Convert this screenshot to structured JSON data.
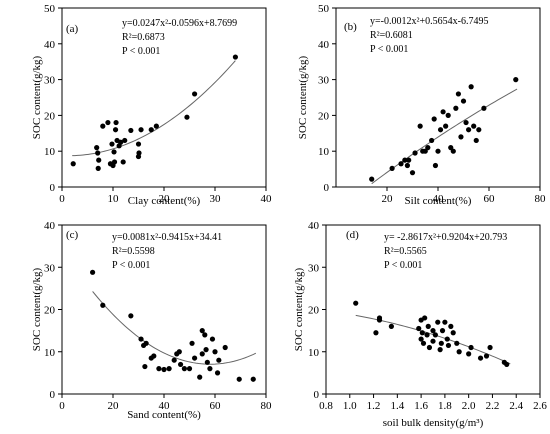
{
  "chart_data": [
    {
      "type": "scatter",
      "panel_label": "(a)",
      "equation": "y=0.0247x²-0.0596x+8.7699",
      "r2": "R²=0.6873",
      "p_value": "P  < 0.001",
      "xlabel": "Clay content(%)",
      "ylabel": "SOC content(g/kg)",
      "xlim": [
        0,
        40
      ],
      "ylim": [
        0,
        50
      ],
      "xticks": [
        0,
        10,
        20,
        30,
        40
      ],
      "xtick_labels": [
        "0",
        "10",
        "20",
        "30",
        "40"
      ],
      "yticks": [
        0,
        10,
        20,
        30,
        40,
        50
      ],
      "ytick_labels": [
        "0",
        "10",
        "20",
        "30",
        "40",
        "50"
      ],
      "fit": {
        "a": 0.0247,
        "b": -0.0596,
        "c": 8.7699,
        "x_range": [
          2,
          34
        ]
      },
      "points": [
        [
          2.2,
          6.5
        ],
        [
          6.8,
          11
        ],
        [
          7,
          9.5
        ],
        [
          7.1,
          5.2
        ],
        [
          7.2,
          7.5
        ],
        [
          8,
          17
        ],
        [
          9,
          18
        ],
        [
          9.5,
          6.5
        ],
        [
          9.8,
          12
        ],
        [
          10,
          6
        ],
        [
          10.2,
          9.8
        ],
        [
          10.3,
          7
        ],
        [
          10.5,
          16
        ],
        [
          10.6,
          18
        ],
        [
          10.8,
          13
        ],
        [
          11.2,
          11.5
        ],
        [
          11.5,
          12.5
        ],
        [
          12,
          7
        ],
        [
          12.3,
          13
        ],
        [
          13.5,
          15.8
        ],
        [
          15,
          12
        ],
        [
          15,
          8.5
        ],
        [
          15.1,
          9.5
        ],
        [
          15.5,
          16
        ],
        [
          17.5,
          16
        ],
        [
          18.5,
          17
        ],
        [
          24.5,
          19.5
        ],
        [
          26,
          26
        ],
        [
          34,
          36.3
        ]
      ]
    },
    {
      "type": "scatter",
      "panel_label": "(b)",
      "equation": "y=-0.0012x²+0.5654x-6.7495",
      "r2": "R²=0.6081",
      "p_value": "P  < 0.001",
      "xlabel": "Silt content(%)",
      "ylabel": "SOC content(g/kg)",
      "xlim": [
        0,
        80
      ],
      "ylim": [
        0,
        50
      ],
      "xticks": [
        20,
        40,
        60,
        80
      ],
      "xtick_labels": [
        "20",
        "40",
        "60",
        "80"
      ],
      "yticks": [
        0,
        10,
        20,
        30,
        40,
        50
      ],
      "ytick_labels": [
        "0",
        "10",
        "20",
        "30",
        "40",
        "50"
      ],
      "fit": {
        "a": -0.0012,
        "b": 0.5654,
        "c": -6.7495,
        "x_range": [
          14,
          71
        ]
      },
      "points": [
        [
          14,
          2.2
        ],
        [
          22,
          5.2
        ],
        [
          25.5,
          6.5
        ],
        [
          27,
          7.5
        ],
        [
          28,
          6
        ],
        [
          28.5,
          7.5
        ],
        [
          30,
          4
        ],
        [
          31,
          9.5
        ],
        [
          33,
          17
        ],
        [
          34,
          10
        ],
        [
          35,
          10
        ],
        [
          36,
          11
        ],
        [
          37.5,
          13
        ],
        [
          38.5,
          19
        ],
        [
          39,
          6
        ],
        [
          40,
          10
        ],
        [
          41,
          16
        ],
        [
          42,
          21
        ],
        [
          43,
          17
        ],
        [
          44,
          20
        ],
        [
          45,
          11
        ],
        [
          46,
          10
        ],
        [
          47,
          22
        ],
        [
          48,
          26
        ],
        [
          49,
          14
        ],
        [
          50,
          24
        ],
        [
          51,
          18
        ],
        [
          52,
          16
        ],
        [
          53,
          28
        ],
        [
          54,
          17
        ],
        [
          55,
          13
        ],
        [
          56,
          16
        ],
        [
          58,
          22
        ],
        [
          70.5,
          30
        ]
      ]
    },
    {
      "type": "scatter",
      "panel_label": "(c)",
      "equation": "y=0.0081x²-0.9415x+34.41",
      "r2": "R²=0.5598",
      "p_value": "P  < 0.001",
      "xlabel": "Sand content(%)",
      "ylabel": "SOC content(g/kg)",
      "xlim": [
        0,
        80
      ],
      "ylim": [
        0,
        40
      ],
      "xticks": [
        0,
        20,
        40,
        60,
        80
      ],
      "xtick_labels": [
        "0",
        "20",
        "40",
        "60",
        "80"
      ],
      "yticks": [
        0,
        10,
        20,
        30,
        40
      ],
      "ytick_labels": [
        "0",
        "10",
        "20",
        "30",
        "40"
      ],
      "fit": {
        "a": 0.0081,
        "b": -0.9415,
        "c": 34.41,
        "x_range": [
          12,
          76
        ]
      },
      "points": [
        [
          12,
          28.8
        ],
        [
          16,
          21
        ],
        [
          27,
          18.5
        ],
        [
          31,
          13
        ],
        [
          32,
          11.5
        ],
        [
          32.5,
          6.5
        ],
        [
          33,
          12
        ],
        [
          35,
          8.5
        ],
        [
          36,
          9
        ],
        [
          38,
          6
        ],
        [
          40,
          5.8
        ],
        [
          42,
          6
        ],
        [
          44,
          8
        ],
        [
          45,
          9.5
        ],
        [
          46,
          10
        ],
        [
          46.5,
          7
        ],
        [
          48,
          6
        ],
        [
          50,
          6
        ],
        [
          51,
          12
        ],
        [
          52,
          8.5
        ],
        [
          54,
          4
        ],
        [
          55,
          9.5
        ],
        [
          55,
          15
        ],
        [
          56,
          14
        ],
        [
          56.5,
          10.5
        ],
        [
          57,
          7.5
        ],
        [
          58,
          6
        ],
        [
          59,
          13
        ],
        [
          60,
          10
        ],
        [
          61,
          5
        ],
        [
          61.5,
          8
        ],
        [
          64,
          11
        ],
        [
          69.5,
          3.5
        ],
        [
          75,
          3.5
        ]
      ]
    },
    {
      "type": "scatter",
      "panel_label": "(d)",
      "equation": "y= -2.8617x²+0.9204x+20.793",
      "r2": "R²=0.5565",
      "p_value": "P  < 0.001",
      "xlabel": "soil bulk density(g/m³)",
      "ylabel": "SOC content(g/kg)",
      "xlim": [
        0.8,
        2.6
      ],
      "ylim": [
        0,
        40
      ],
      "xticks": [
        0.8,
        1.0,
        1.2,
        1.4,
        1.6,
        1.8,
        2.0,
        2.2,
        2.4,
        2.6
      ],
      "xtick_labels": [
        "0.8",
        "1.0",
        "1.2",
        "1.4",
        "1.6",
        "1.8",
        "2.0",
        "2.2",
        "2.4",
        "2.6"
      ],
      "yticks": [
        0,
        10,
        20,
        30,
        40
      ],
      "ytick_labels": [
        "0",
        "10",
        "20",
        "30",
        "40"
      ],
      "fit": {
        "a": -2.8617,
        "b": 0.9204,
        "c": 20.793,
        "x_range": [
          1.05,
          2.35
        ]
      },
      "points": [
        [
          1.05,
          21.5
        ],
        [
          1.22,
          14.5
        ],
        [
          1.25,
          18
        ],
        [
          1.25,
          17.5
        ],
        [
          1.35,
          16
        ],
        [
          1.58,
          15.5
        ],
        [
          1.6,
          17.5
        ],
        [
          1.6,
          13
        ],
        [
          1.61,
          14.5
        ],
        [
          1.62,
          12
        ],
        [
          1.63,
          18
        ],
        [
          1.65,
          14
        ],
        [
          1.66,
          16
        ],
        [
          1.67,
          11
        ],
        [
          1.7,
          15
        ],
        [
          1.7,
          12.5
        ],
        [
          1.72,
          14
        ],
        [
          1.74,
          17
        ],
        [
          1.76,
          10.5
        ],
        [
          1.77,
          12
        ],
        [
          1.78,
          15
        ],
        [
          1.8,
          17
        ],
        [
          1.82,
          13
        ],
        [
          1.83,
          11.5
        ],
        [
          1.85,
          16
        ],
        [
          1.87,
          14.5
        ],
        [
          1.9,
          12
        ],
        [
          1.92,
          10
        ],
        [
          2.0,
          9.5
        ],
        [
          2.02,
          11
        ],
        [
          2.1,
          8.5
        ],
        [
          2.15,
          9
        ],
        [
          2.18,
          11
        ],
        [
          2.3,
          7.5
        ],
        [
          2.32,
          7
        ]
      ]
    }
  ]
}
